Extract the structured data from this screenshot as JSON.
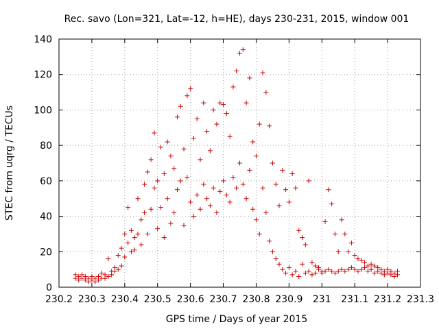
{
  "chart_data": {
    "type": "scatter",
    "title": "Rec. savo (Lon=321, Lat=-12, h=HE), days 230-231, 2015, window 001",
    "xlabel": "GPS time / Days of year 2015",
    "ylabel": "STEC from uqrg / TECUs",
    "xlim": [
      230.2,
      231.3
    ],
    "ylim": [
      0,
      140
    ],
    "x_ticks": [
      230.2,
      230.3,
      230.4,
      230.5,
      230.6,
      230.7,
      230.8,
      230.9,
      231,
      231.1,
      231.2,
      231.3
    ],
    "x_tick_labels": [
      "230.2",
      "230.3",
      "230.4",
      "230.5",
      "230.6",
      "230.7",
      "230.8",
      "230.9",
      "231",
      "231.1",
      "231.2",
      "231.3"
    ],
    "y_ticks": [
      0,
      20,
      40,
      60,
      80,
      100,
      120,
      140
    ],
    "y_tick_labels": [
      "0",
      "20",
      "40",
      "60",
      "80",
      "100",
      "120",
      "140"
    ],
    "grid": true,
    "marker": "+",
    "color": "#cc0000",
    "series": [
      {
        "name": "STEC",
        "points": [
          [
            230.25,
            7
          ],
          [
            230.25,
            5
          ],
          [
            230.26,
            6
          ],
          [
            230.26,
            4
          ],
          [
            230.27,
            7
          ],
          [
            230.27,
            5
          ],
          [
            230.28,
            6
          ],
          [
            230.28,
            4
          ],
          [
            230.29,
            5
          ],
          [
            230.29,
            3
          ],
          [
            230.3,
            6
          ],
          [
            230.3,
            4
          ],
          [
            230.31,
            5
          ],
          [
            230.31,
            3
          ],
          [
            230.32,
            6
          ],
          [
            230.32,
            4
          ],
          [
            230.33,
            8
          ],
          [
            230.33,
            5
          ],
          [
            230.34,
            7
          ],
          [
            230.34,
            5
          ],
          [
            230.35,
            16
          ],
          [
            230.35,
            6
          ],
          [
            230.36,
            9
          ],
          [
            230.36,
            7
          ],
          [
            230.37,
            11
          ],
          [
            230.37,
            9
          ],
          [
            230.38,
            18
          ],
          [
            230.38,
            10
          ],
          [
            230.39,
            22
          ],
          [
            230.39,
            12
          ],
          [
            230.4,
            30
          ],
          [
            230.4,
            17
          ],
          [
            230.41,
            45
          ],
          [
            230.41,
            25
          ],
          [
            230.42,
            32
          ],
          [
            230.42,
            20
          ],
          [
            230.43,
            28
          ],
          [
            230.43,
            21
          ],
          [
            230.44,
            50
          ],
          [
            230.44,
            30
          ],
          [
            230.45,
            38
          ],
          [
            230.45,
            24
          ],
          [
            230.46,
            58
          ],
          [
            230.46,
            42
          ],
          [
            230.47,
            65
          ],
          [
            230.47,
            30
          ],
          [
            230.48,
            72
          ],
          [
            230.48,
            44
          ],
          [
            230.49,
            87
          ],
          [
            230.49,
            56
          ],
          [
            230.5,
            60
          ],
          [
            230.5,
            33
          ],
          [
            230.51,
            79
          ],
          [
            230.51,
            45
          ],
          [
            230.52,
            64
          ],
          [
            230.52,
            28
          ],
          [
            230.53,
            82
          ],
          [
            230.53,
            50
          ],
          [
            230.54,
            74
          ],
          [
            230.54,
            36
          ],
          [
            230.55,
            67
          ],
          [
            230.55,
            42
          ],
          [
            230.56,
            96
          ],
          [
            230.56,
            55
          ],
          [
            230.57,
            102
          ],
          [
            230.57,
            60
          ],
          [
            230.58,
            78
          ],
          [
            230.58,
            35
          ],
          [
            230.59,
            108
          ],
          [
            230.59,
            62
          ],
          [
            230.6,
            112
          ],
          [
            230.6,
            48
          ],
          [
            230.61,
            84
          ],
          [
            230.61,
            40
          ],
          [
            230.62,
            95
          ],
          [
            230.62,
            52
          ],
          [
            230.63,
            72
          ],
          [
            230.63,
            44
          ],
          [
            230.64,
            104
          ],
          [
            230.64,
            58
          ],
          [
            230.65,
            88
          ],
          [
            230.65,
            50
          ],
          [
            230.66,
            77
          ],
          [
            230.66,
            46
          ],
          [
            230.67,
            100
          ],
          [
            230.67,
            56
          ],
          [
            230.68,
            92
          ],
          [
            230.68,
            42
          ],
          [
            230.69,
            104
          ],
          [
            230.69,
            54
          ],
          [
            230.7,
            103
          ],
          [
            230.7,
            60
          ],
          [
            230.71,
            98
          ],
          [
            230.71,
            52
          ],
          [
            230.72,
            85
          ],
          [
            230.72,
            48
          ],
          [
            230.73,
            113
          ],
          [
            230.73,
            62
          ],
          [
            230.74,
            122
          ],
          [
            230.74,
            56
          ],
          [
            230.75,
            132
          ],
          [
            230.75,
            70
          ],
          [
            230.76,
            134
          ],
          [
            230.76,
            58
          ],
          [
            230.77,
            104
          ],
          [
            230.77,
            50
          ],
          [
            230.78,
            118
          ],
          [
            230.78,
            66
          ],
          [
            230.79,
            82
          ],
          [
            230.79,
            44
          ],
          [
            230.8,
            74
          ],
          [
            230.8,
            38
          ],
          [
            230.81,
            92
          ],
          [
            230.81,
            30
          ],
          [
            230.82,
            121
          ],
          [
            230.82,
            56
          ],
          [
            230.83,
            110
          ],
          [
            230.83,
            42
          ],
          [
            230.84,
            91
          ],
          [
            230.84,
            26
          ],
          [
            230.85,
            70
          ],
          [
            230.85,
            20
          ],
          [
            230.86,
            58
          ],
          [
            230.86,
            16
          ],
          [
            230.87,
            46
          ],
          [
            230.87,
            13
          ],
          [
            230.88,
            66
          ],
          [
            230.88,
            10
          ],
          [
            230.89,
            55
          ],
          [
            230.89,
            8
          ],
          [
            230.9,
            48
          ],
          [
            230.9,
            11
          ],
          [
            230.91,
            64
          ],
          [
            230.91,
            7
          ],
          [
            230.92,
            56
          ],
          [
            230.92,
            9
          ],
          [
            230.93,
            32
          ],
          [
            230.93,
            6
          ],
          [
            230.94,
            28
          ],
          [
            230.94,
            13
          ],
          [
            230.95,
            24
          ],
          [
            230.95,
            8
          ],
          [
            230.96,
            60
          ],
          [
            230.96,
            9
          ],
          [
            230.97,
            14
          ],
          [
            230.97,
            7
          ],
          [
            230.98,
            12
          ],
          [
            230.98,
            8
          ],
          [
            230.99,
            11
          ],
          [
            230.99,
            10
          ],
          [
            231.0,
            9
          ],
          [
            231.0,
            8
          ],
          [
            231.01,
            37
          ],
          [
            231.01,
            9
          ],
          [
            231.02,
            55
          ],
          [
            231.02,
            10
          ],
          [
            231.03,
            47
          ],
          [
            231.03,
            9
          ],
          [
            231.04,
            30
          ],
          [
            231.04,
            8
          ],
          [
            231.05,
            20
          ],
          [
            231.05,
            9
          ],
          [
            231.06,
            38
          ],
          [
            231.06,
            10
          ],
          [
            231.07,
            30
          ],
          [
            231.07,
            9
          ],
          [
            231.08,
            20
          ],
          [
            231.08,
            10
          ],
          [
            231.09,
            25
          ],
          [
            231.09,
            11
          ],
          [
            231.1,
            18
          ],
          [
            231.1,
            10
          ],
          [
            231.11,
            16
          ],
          [
            231.11,
            9
          ],
          [
            231.12,
            15
          ],
          [
            231.12,
            10
          ],
          [
            231.13,
            14
          ],
          [
            231.13,
            11
          ],
          [
            231.14,
            12
          ],
          [
            231.14,
            9
          ],
          [
            231.15,
            13
          ],
          [
            231.15,
            10
          ],
          [
            231.16,
            12
          ],
          [
            231.16,
            8
          ],
          [
            231.17,
            11
          ],
          [
            231.17,
            9
          ],
          [
            231.18,
            10
          ],
          [
            231.18,
            8
          ],
          [
            231.19,
            9
          ],
          [
            231.19,
            7
          ],
          [
            231.2,
            10
          ],
          [
            231.2,
            8
          ],
          [
            231.21,
            9
          ],
          [
            231.21,
            7
          ],
          [
            231.22,
            8
          ],
          [
            231.22,
            6
          ],
          [
            231.23,
            9
          ],
          [
            231.23,
            7
          ]
        ]
      }
    ]
  }
}
